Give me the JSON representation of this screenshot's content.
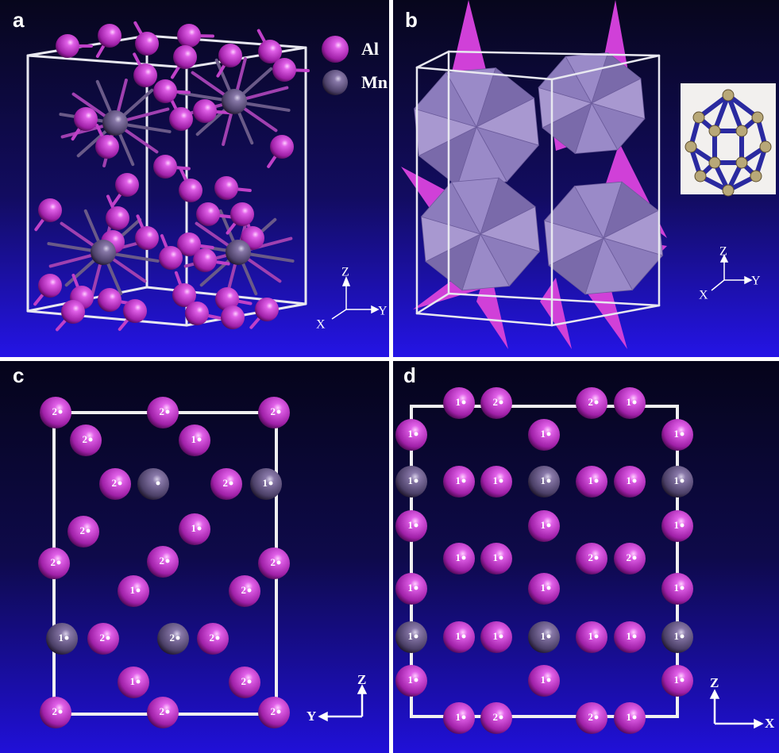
{
  "panels": {
    "a": {
      "label": "a",
      "legend": [
        "Al",
        "Mn"
      ],
      "axes": {
        "z": "Z",
        "y": "Y",
        "x": "X"
      }
    },
    "b": {
      "label": "b",
      "axes": {
        "z": "Z",
        "y": "Y",
        "x": "X"
      }
    },
    "c": {
      "label": "c",
      "axes": {
        "z": "Z",
        "y": "Y"
      },
      "atom_labels": [
        "2",
        "2",
        "2",
        "2",
        "1",
        "2",
        "2",
        "1",
        "2",
        "1",
        "2",
        "2",
        "2",
        "1",
        "2",
        "1",
        "2",
        "2",
        "2",
        "1",
        "2",
        "2",
        "2",
        "2"
      ]
    },
    "d": {
      "label": "d",
      "axes": {
        "z": "Z",
        "x": "X"
      },
      "atom_labels": [
        "1",
        "2",
        "2",
        "1",
        "1",
        "1",
        "1",
        "1",
        "1",
        "1",
        "1",
        "1",
        "1",
        "1",
        "1",
        "1",
        "1",
        "1",
        "1",
        "2",
        "2",
        "1",
        "1",
        "1",
        "1",
        "1",
        "1",
        "1",
        "1",
        "1",
        "1",
        "1",
        "1",
        "1",
        "1",
        "2",
        "2",
        "1"
      ]
    }
  }
}
